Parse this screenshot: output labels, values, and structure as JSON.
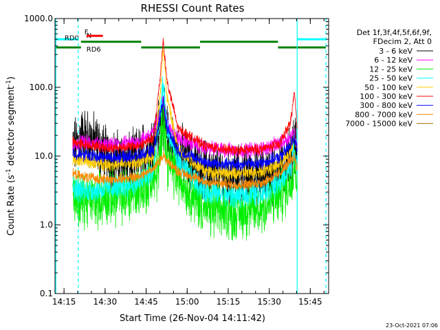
{
  "chart_data": {
    "type": "line",
    "title": "RHESSI Count Rates",
    "xlabel": "Start Time (26-Nov-04 14:11:42)",
    "ylabel": "Count Rate (s",
    "ylabel_sup": "-1",
    "ylabel_rest": " detector segment",
    "ylabel_sup2": "-1",
    "ylabel_end": ")",
    "x_unit": "minutes after 14:11:42",
    "xlim": [
      0,
      100
    ],
    "yscale": "log",
    "ylim": [
      0.1,
      1000
    ],
    "x_ticks": [
      {
        "t": 3.3,
        "label": "14:15"
      },
      {
        "t": 18.3,
        "label": "14:30"
      },
      {
        "t": 33.3,
        "label": "14:45"
      },
      {
        "t": 48.3,
        "label": "15:00"
      },
      {
        "t": 63.3,
        "label": "15:15"
      },
      {
        "t": 78.3,
        "label": "15:30"
      },
      {
        "t": 93.3,
        "label": "15:45"
      }
    ],
    "y_ticks": [
      {
        "v": 0.1,
        "label": "0.1"
      },
      {
        "v": 1,
        "label": "1.0"
      },
      {
        "v": 10,
        "label": "10.0"
      },
      {
        "v": 100,
        "label": "100.0"
      },
      {
        "v": 1000,
        "label": "1000.0"
      }
    ],
    "legend_header": [
      "Det 1f,3f,4f,5f,6f,9f,",
      "FDecim 2, Att 0"
    ],
    "legend_placement": "right",
    "time_range": [
      6.5,
      88.5
    ],
    "peaks": [
      39.5,
      87.5
    ],
    "series": [
      {
        "name": "3 - 6 keV",
        "color": "#000000",
        "knots": [
          [
            6.5,
            12
          ],
          [
            10,
            20
          ],
          [
            15,
            15
          ],
          [
            20,
            9
          ],
          [
            28,
            8
          ],
          [
            35,
            14
          ],
          [
            38.5,
            30
          ],
          [
            39.5,
            42
          ],
          [
            41,
            20
          ],
          [
            44,
            12
          ],
          [
            50,
            8
          ],
          [
            60,
            5
          ],
          [
            70,
            5
          ],
          [
            80,
            5.5
          ],
          [
            85,
            8
          ],
          [
            87.5,
            15
          ],
          [
            88.5,
            10
          ]
        ],
        "noise": 0.35,
        "peak_mult": [
          1.0,
          1.0
        ]
      },
      {
        "name": "6 - 12 keV",
        "color": "#ff00ff",
        "knots": [
          [
            6.5,
            14
          ],
          [
            10,
            16
          ],
          [
            20,
            14
          ],
          [
            30,
            16
          ],
          [
            36,
            22
          ],
          [
            38.5,
            45
          ],
          [
            39.5,
            75
          ],
          [
            41,
            30
          ],
          [
            45,
            18
          ],
          [
            55,
            13
          ],
          [
            65,
            12
          ],
          [
            75,
            12.5
          ],
          [
            82,
            15
          ],
          [
            86,
            19
          ],
          [
            87.5,
            22
          ],
          [
            88.5,
            15
          ]
        ],
        "noise": 0.09,
        "peak_mult": [
          1.0,
          1.0
        ]
      },
      {
        "name": "12 - 25 keV",
        "color": "#00ee00",
        "knots": [
          [
            6.5,
            3
          ],
          [
            9,
            2.2
          ],
          [
            15,
            2.4
          ],
          [
            25,
            2.6
          ],
          [
            33,
            3.6
          ],
          [
            38,
            6
          ],
          [
            39.5,
            42
          ],
          [
            41,
            9
          ],
          [
            45,
            5
          ],
          [
            55,
            1.7
          ],
          [
            65,
            1.5
          ],
          [
            75,
            1.7
          ],
          [
            82,
            2.6
          ],
          [
            86,
            4.2
          ],
          [
            87.5,
            9
          ],
          [
            88.5,
            5
          ]
        ],
        "noise": 0.32,
        "peak_mult": [
          1.0,
          1.0
        ]
      },
      {
        "name": "25 - 50 keV",
        "color": "#00ffff",
        "knots": [
          [
            6.5,
            3.5
          ],
          [
            10,
            3.1
          ],
          [
            20,
            3.4
          ],
          [
            30,
            4
          ],
          [
            36,
            6
          ],
          [
            38.5,
            40
          ],
          [
            39.5,
            120
          ],
          [
            41,
            25
          ],
          [
            45,
            8
          ],
          [
            55,
            3
          ],
          [
            65,
            2.6
          ],
          [
            75,
            2.9
          ],
          [
            82,
            4
          ],
          [
            86,
            7
          ],
          [
            87.5,
            12
          ],
          [
            88.5,
            7
          ]
        ],
        "noise": 0.14,
        "peak_mult": [
          1.0,
          1.0
        ]
      },
      {
        "name": "50 - 100 keV",
        "color": "#ffcc00",
        "knots": [
          [
            6.5,
            9
          ],
          [
            10,
            8.5
          ],
          [
            20,
            7.5
          ],
          [
            30,
            8
          ],
          [
            36,
            10
          ],
          [
            38.5,
            80
          ],
          [
            39.5,
            400
          ],
          [
            41,
            70
          ],
          [
            45,
            12
          ],
          [
            55,
            6
          ],
          [
            65,
            5.5
          ],
          [
            75,
            6
          ],
          [
            82,
            7.5
          ],
          [
            86,
            11
          ],
          [
            87.5,
            20
          ],
          [
            88.5,
            12
          ]
        ],
        "noise": 0.08,
        "peak_mult": [
          1.0,
          1.0
        ]
      },
      {
        "name": "100 - 300 keV",
        "color": "#ff0000",
        "knots": [
          [
            6.5,
            16
          ],
          [
            10,
            15
          ],
          [
            20,
            13
          ],
          [
            30,
            14
          ],
          [
            36,
            18
          ],
          [
            38.5,
            150
          ],
          [
            39.5,
            500
          ],
          [
            41,
            120
          ],
          [
            45,
            25
          ],
          [
            55,
            14
          ],
          [
            65,
            12
          ],
          [
            75,
            12.5
          ],
          [
            82,
            15
          ],
          [
            86,
            30
          ],
          [
            87.5,
            85
          ],
          [
            88.5,
            25
          ]
        ],
        "noise": 0.06,
        "peak_mult": [
          1.0,
          1.0
        ]
      },
      {
        "name": "300 - 800 keV",
        "color": "#0000ff",
        "knots": [
          [
            6.5,
            11
          ],
          [
            10,
            10.5
          ],
          [
            20,
            9.5
          ],
          [
            30,
            10
          ],
          [
            36,
            12
          ],
          [
            38.5,
            40
          ],
          [
            39.5,
            65
          ],
          [
            41,
            25
          ],
          [
            45,
            12
          ],
          [
            55,
            8
          ],
          [
            65,
            7.5
          ],
          [
            75,
            7.8
          ],
          [
            82,
            9.5
          ],
          [
            86,
            14
          ],
          [
            87.5,
            20
          ],
          [
            88.5,
            12
          ]
        ],
        "noise": 0.07,
        "peak_mult": [
          1.0,
          1.0
        ]
      },
      {
        "name": "800 - 7000 keV",
        "color": "#ff8800",
        "knots": [
          [
            6.5,
            5.5
          ],
          [
            10,
            5
          ],
          [
            20,
            4.5
          ],
          [
            30,
            5
          ],
          [
            36,
            6.5
          ],
          [
            38.5,
            9
          ],
          [
            39.5,
            10.5
          ],
          [
            41,
            8.5
          ],
          [
            45,
            6
          ],
          [
            55,
            4.2
          ],
          [
            65,
            3.8
          ],
          [
            75,
            4
          ],
          [
            82,
            5.5
          ],
          [
            86,
            8.5
          ],
          [
            87.5,
            10
          ],
          [
            88.5,
            7
          ]
        ],
        "noise": 0.06,
        "peak_mult": [
          1.0,
          1.0
        ]
      },
      {
        "name": "7000 - 15000 keV",
        "color": "#aa6600",
        "knots": [
          [
            6.5,
            5
          ],
          [
            20,
            4.8
          ],
          [
            40,
            5
          ],
          [
            60,
            4.5
          ],
          [
            80,
            5
          ],
          [
            88.5,
            5
          ]
        ],
        "noise": 0.02,
        "peak_mult": [
          1.0,
          1.0
        ],
        "hidden": true
      }
    ],
    "state_bars": [
      {
        "label": "N",
        "color": "#00ffff",
        "label_color": "#00ffff",
        "y": 500,
        "segments": [
          [
            0,
            8.5
          ],
          [
            88.5,
            99
          ]
        ],
        "label_at": 11.5
      },
      {
        "label": "F",
        "color": "#ff0000",
        "label_color": "#ff0000",
        "y": 560,
        "segments": [
          [
            11.5,
            17.5
          ]
        ],
        "label_at": 9.5
      },
      {
        "label": "RD0",
        "color": "#008000",
        "label_color": "#008000",
        "y": 460,
        "segments": [
          [
            9.5,
            31.5
          ],
          [
            53,
            81.5
          ]
        ],
        "label_at": 3.5
      },
      {
        "label": "RD6",
        "color": "#008000",
        "label_color": "#008000",
        "y": 380,
        "segments": [
          [
            0,
            9.5
          ],
          [
            31.5,
            53
          ],
          [
            81.5,
            99
          ]
        ],
        "label_at": 11.5
      }
    ],
    "vlines": [
      {
        "t": 0.3,
        "color": "#00ffff",
        "style": "solid"
      },
      {
        "t": 8.5,
        "color": "#00ffff",
        "style": "dashed"
      },
      {
        "t": 88.5,
        "color": "#00ffff",
        "style": "solid"
      },
      {
        "t": 99,
        "color": "#00ffff",
        "style": "dashed"
      }
    ]
  },
  "footer": {
    "timestamp": "23-Oct-2021 07:06"
  }
}
